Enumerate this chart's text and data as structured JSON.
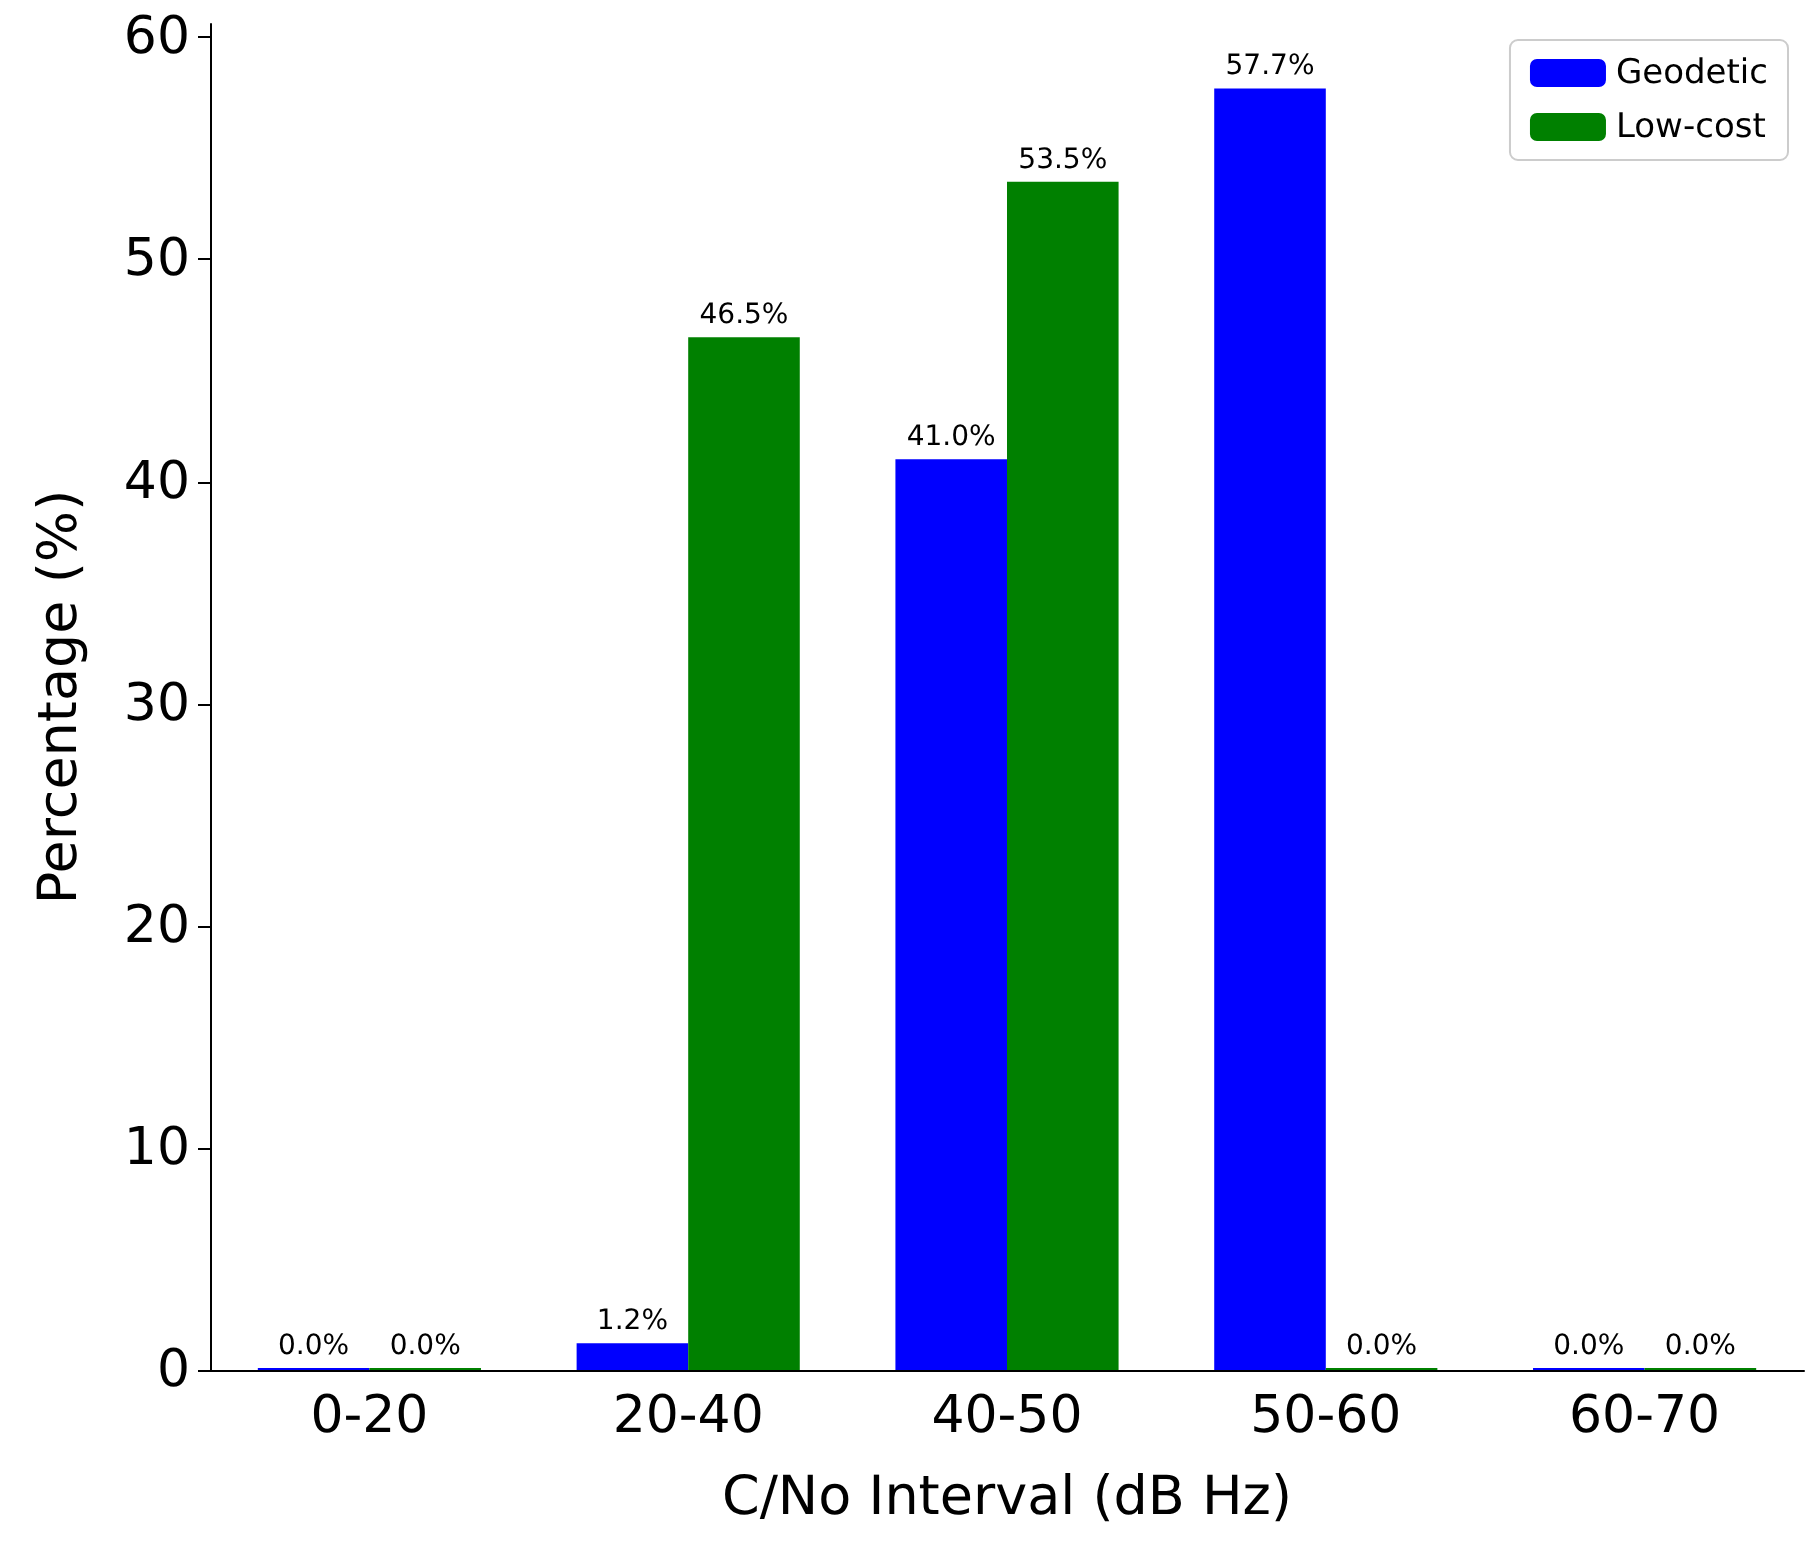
{
  "chart_data": {
    "type": "bar",
    "xlabel": "C/No Interval (dB Hz)",
    "ylabel": "Percentage (%)",
    "categories": [
      "0-20",
      "20-40",
      "40-50",
      "50-60",
      "60-70"
    ],
    "series": [
      {
        "name": "Geodetic",
        "color": "#0000ff",
        "values": [
          0.0,
          1.2,
          41.0,
          57.7,
          0.0
        ],
        "value_labels": [
          "0.0%",
          "1.2%",
          "41.0%",
          "57.7%",
          "0.0%"
        ]
      },
      {
        "name": "Low-cost",
        "color": "#008000",
        "values": [
          0.0,
          46.5,
          53.5,
          0.0,
          0.0
        ],
        "value_labels": [
          "0.0%",
          "46.5%",
          "53.5%",
          "0.0%",
          "0.0%"
        ]
      }
    ],
    "ylim": [
      0,
      60.6
    ],
    "yticks": [
      0,
      10,
      20,
      30,
      40,
      50,
      60
    ],
    "grid": false,
    "legend": "top right"
  }
}
